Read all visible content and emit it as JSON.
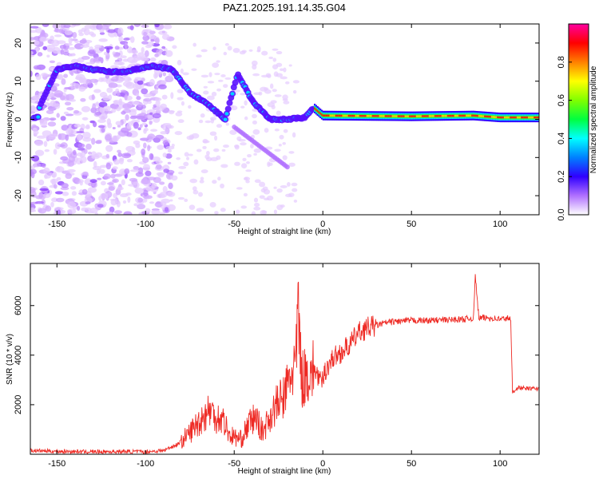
{
  "title": "PAZ1.2025.191.14.35.G04",
  "charts": [
    {
      "type": "heatmap",
      "xlabel": "Height of straight line (km)",
      "ylabel": "Frequency (Hz)",
      "xlim": [
        -165,
        122
      ],
      "ylim": [
        -25,
        25
      ],
      "xticks": [
        -150,
        -100,
        -50,
        0,
        50,
        100
      ],
      "yticks": [
        -20,
        -10,
        0,
        10,
        20
      ],
      "colorbar": {
        "label": "Normalized spectral amplitude",
        "range": [
          0,
          1
        ],
        "ticks": [
          "0.0",
          "0.2",
          "0.4",
          "0.6",
          "0.8"
        ],
        "tick_values": [
          0.0,
          0.2,
          0.4,
          0.6,
          0.8
        ],
        "colors": [
          "#ffffff",
          "#b070ff",
          "#3000ff",
          "#0080ff",
          "#00ffff",
          "#00ff40",
          "#80ff00",
          "#ffff00",
          "#ff8000",
          "#ff0000",
          "#ff00a0"
        ]
      },
      "ridge": [
        {
          "x": -160,
          "y": 3
        },
        {
          "x": -150,
          "y": 13
        },
        {
          "x": -140,
          "y": 14
        },
        {
          "x": -130,
          "y": 13
        },
        {
          "x": -120,
          "y": 12.5
        },
        {
          "x": -112,
          "y": 12.5
        },
        {
          "x": -95,
          "y": 14
        },
        {
          "x": -85,
          "y": 13
        },
        {
          "x": -75,
          "y": 7
        },
        {
          "x": -65,
          "y": 4
        },
        {
          "x": -55,
          "y": 0
        },
        {
          "x": -48,
          "y": 12
        },
        {
          "x": -40,
          "y": 5
        },
        {
          "x": -30,
          "y": 0
        },
        {
          "x": -20,
          "y": 0
        },
        {
          "x": -10,
          "y": 0.5
        },
        {
          "x": -5,
          "y": 3
        },
        {
          "x": 0,
          "y": 1
        },
        {
          "x": 50,
          "y": 0.8
        },
        {
          "x": 85,
          "y": 1
        },
        {
          "x": 100,
          "y": 0.5
        },
        {
          "x": 122,
          "y": 0.5
        }
      ]
    },
    {
      "type": "line",
      "xlabel": "Height of straight line (km)",
      "ylabel": "SNR (10 * v/v)",
      "xlim": [
        -165,
        122
      ],
      "ylim": [
        0,
        7700
      ],
      "xticks": [
        -150,
        -100,
        -50,
        0,
        50,
        100
      ],
      "yticks": [
        2000,
        4000,
        6000
      ],
      "color": "#ee2a24",
      "series": [
        {
          "x": [
            -165,
            -150,
            -130,
            -110,
            -100,
            -90,
            -82,
            -76,
            -70,
            -64,
            -60,
            -56,
            -53,
            -50,
            -46,
            -42,
            -38,
            -34,
            -30,
            -26,
            -22,
            -18,
            -15,
            -14,
            -12,
            -8,
            -4,
            -1,
            2,
            6,
            10,
            15,
            20,
            25,
            30,
            35,
            40,
            50,
            60,
            70,
            80,
            85,
            86,
            88,
            95,
            100,
            105,
            106,
            107,
            110,
            115,
            122
          ],
          "y": [
            150,
            120,
            100,
            110,
            100,
            150,
            400,
            800,
            1300,
            1800,
            1500,
            1400,
            800,
            700,
            600,
            1200,
            1500,
            900,
            1500,
            2000,
            2300,
            3200,
            3800,
            6000,
            3000,
            3300,
            3400,
            2800,
            3500,
            3900,
            4100,
            4400,
            4900,
            5100,
            5200,
            5300,
            5350,
            5400,
            5400,
            5420,
            5450,
            5500,
            7200,
            5500,
            5500,
            5450,
            5500,
            5400,
            2500,
            2700,
            2650,
            2650
          ]
        }
      ]
    }
  ]
}
